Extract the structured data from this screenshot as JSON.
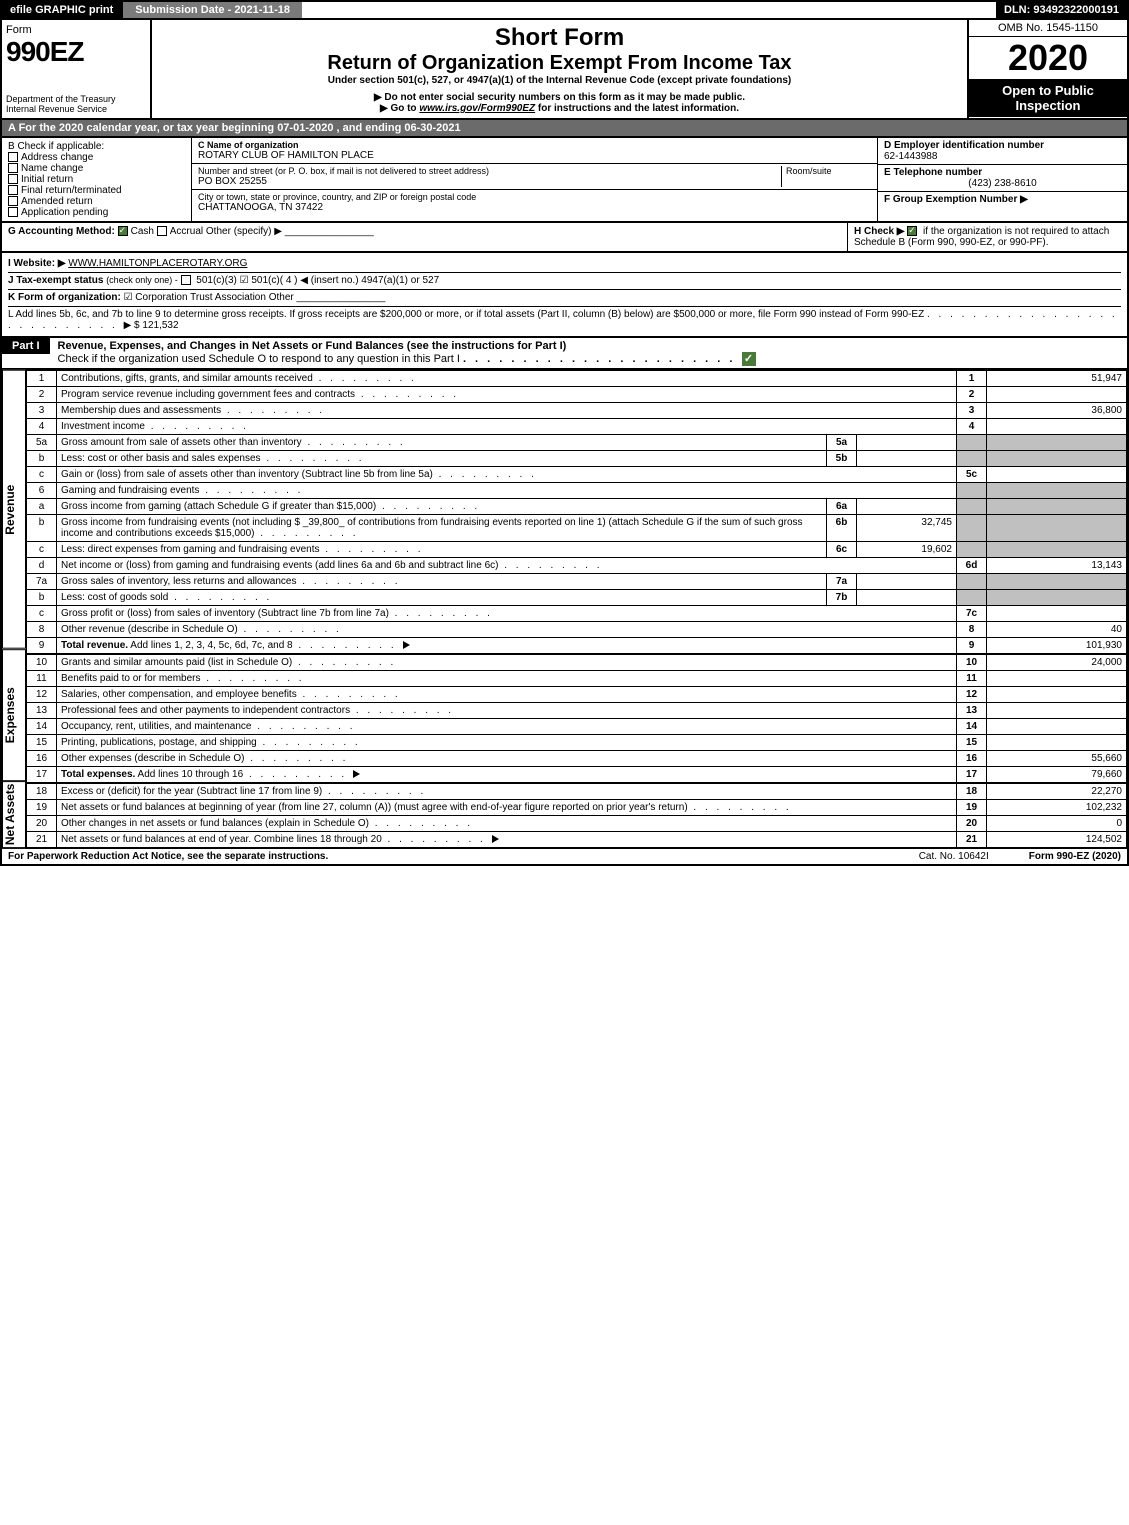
{
  "topbar": {
    "efile": "efile GRAPHIC print",
    "submission": "Submission Date - 2021-11-18",
    "dln": "DLN: 93492322000191"
  },
  "header": {
    "form_label": "Form",
    "form_number": "990EZ",
    "dept": "Department of the Treasury",
    "irs": "Internal Revenue Service",
    "short_form": "Short Form",
    "title": "Return of Organization Exempt From Income Tax",
    "under": "Under section 501(c), 527, or 4947(a)(1) of the Internal Revenue Code (except private foundations)",
    "notice1": "▶ Do not enter social security numbers on this form as it may be made public.",
    "notice2_pre": "▶ Go to ",
    "notice2_link": "www.irs.gov/Form990EZ",
    "notice2_post": " for instructions and the latest information.",
    "omb": "OMB No. 1545-1150",
    "year": "2020",
    "open": "Open to Public Inspection"
  },
  "row_a": "A For the 2020 calendar year, or tax year beginning 07-01-2020 , and ending 06-30-2021",
  "section_b": {
    "b_label": "B Check if applicable:",
    "opts": [
      "Address change",
      "Name change",
      "Initial return",
      "Final return/terminated",
      "Amended return",
      "Application pending"
    ],
    "c_label": "C Name of organization",
    "c_name": "ROTARY CLUB OF HAMILTON PLACE",
    "addr_label": "Number and street (or P. O. box, if mail is not delivered to street address)",
    "room": "Room/suite",
    "addr": "PO BOX 25255",
    "city_label": "City or town, state or province, country, and ZIP or foreign postal code",
    "city": "CHATTANOOGA, TN  37422",
    "d_label": "D Employer identification number",
    "d_val": "62-1443988",
    "e_label": "E Telephone number",
    "e_val": "(423) 238-8610",
    "f_label": "F Group Exemption Number ▶"
  },
  "gh": {
    "g_label": "G Accounting Method:",
    "g_cash": "Cash",
    "g_accrual": "Accrual",
    "g_other": "Other (specify) ▶",
    "h_label": "H Check ▶",
    "h_text": " if the organization is not required to attach Schedule B (Form 990, 990-EZ, or 990-PF).",
    "i_label": "I Website: ▶",
    "i_val": "WWW.HAMILTONPLACEROTARY.ORG",
    "j_label": "J Tax-exempt status",
    "j_sub": "(check only one) -",
    "j_opts": "501(c)(3)   ☑ 501(c)( 4 ) ◀ (insert no.)   4947(a)(1) or   527",
    "k_label": "K Form of organization:",
    "k_opts": "☑ Corporation   Trust   Association   Other",
    "l_text": "L Add lines 5b, 6c, and 7b to line 9 to determine gross receipts. If gross receipts are $200,000 or more, or if total assets (Part II, column (B) below) are $500,000 or more, file Form 990 instead of Form 990-EZ",
    "l_val": "▶ $ 121,532"
  },
  "part1": {
    "header": "Part I",
    "title": "Revenue, Expenses, and Changes in Net Assets or Fund Balances (see the instructions for Part I)",
    "check_line": "Check if the organization used Schedule O to respond to any question in this Part I"
  },
  "revenue": {
    "side": "Revenue",
    "lines": [
      {
        "n": "1",
        "d": "Contributions, gifts, grants, and similar amounts received",
        "rn": "1",
        "v": "51,947"
      },
      {
        "n": "2",
        "d": "Program service revenue including government fees and contracts",
        "rn": "2",
        "v": ""
      },
      {
        "n": "3",
        "d": "Membership dues and assessments",
        "rn": "3",
        "v": "36,800"
      },
      {
        "n": "4",
        "d": "Investment income",
        "rn": "4",
        "v": ""
      },
      {
        "n": "5a",
        "d": "Gross amount from sale of assets other than inventory",
        "mn": "5a",
        "mv": "",
        "shaded": true
      },
      {
        "n": "b",
        "d": "Less: cost or other basis and sales expenses",
        "mn": "5b",
        "mv": "",
        "shaded": true
      },
      {
        "n": "c",
        "d": "Gain or (loss) from sale of assets other than inventory (Subtract line 5b from line 5a)",
        "rn": "5c",
        "v": ""
      },
      {
        "n": "6",
        "d": "Gaming and fundraising events",
        "shaded": true
      },
      {
        "n": "a",
        "d": "Gross income from gaming (attach Schedule G if greater than $15,000)",
        "mn": "6a",
        "mv": "",
        "shaded": true
      },
      {
        "n": "b",
        "d": "Gross income from fundraising events (not including $ _39,800_ of contributions from fundraising events reported on line 1) (attach Schedule G if the sum of such gross income and contributions exceeds $15,000)",
        "mn": "6b",
        "mv": "32,745",
        "shaded": true
      },
      {
        "n": "c",
        "d": "Less: direct expenses from gaming and fundraising events",
        "mn": "6c",
        "mv": "19,602",
        "shaded": true
      },
      {
        "n": "d",
        "d": "Net income or (loss) from gaming and fundraising events (add lines 6a and 6b and subtract line 6c)",
        "rn": "6d",
        "v": "13,143"
      },
      {
        "n": "7a",
        "d": "Gross sales of inventory, less returns and allowances",
        "mn": "7a",
        "mv": "",
        "shaded": true
      },
      {
        "n": "b",
        "d": "Less: cost of goods sold",
        "mn": "7b",
        "mv": "",
        "shaded": true
      },
      {
        "n": "c",
        "d": "Gross profit or (loss) from sales of inventory (Subtract line 7b from line 7a)",
        "rn": "7c",
        "v": ""
      },
      {
        "n": "8",
        "d": "Other revenue (describe in Schedule O)",
        "rn": "8",
        "v": "40"
      },
      {
        "n": "9",
        "d": "Total revenue. Add lines 1, 2, 3, 4, 5c, 6d, 7c, and 8",
        "rn": "9",
        "v": "101,930",
        "bold": true,
        "arrow": true
      }
    ]
  },
  "expenses": {
    "side": "Expenses",
    "lines": [
      {
        "n": "10",
        "d": "Grants and similar amounts paid (list in Schedule O)",
        "rn": "10",
        "v": "24,000"
      },
      {
        "n": "11",
        "d": "Benefits paid to or for members",
        "rn": "11",
        "v": ""
      },
      {
        "n": "12",
        "d": "Salaries, other compensation, and employee benefits",
        "rn": "12",
        "v": ""
      },
      {
        "n": "13",
        "d": "Professional fees and other payments to independent contractors",
        "rn": "13",
        "v": ""
      },
      {
        "n": "14",
        "d": "Occupancy, rent, utilities, and maintenance",
        "rn": "14",
        "v": ""
      },
      {
        "n": "15",
        "d": "Printing, publications, postage, and shipping",
        "rn": "15",
        "v": ""
      },
      {
        "n": "16",
        "d": "Other expenses (describe in Schedule O)",
        "rn": "16",
        "v": "55,660"
      },
      {
        "n": "17",
        "d": "Total expenses. Add lines 10 through 16",
        "rn": "17",
        "v": "79,660",
        "bold": true,
        "arrow": true
      }
    ]
  },
  "netassets": {
    "side": "Net Assets",
    "lines": [
      {
        "n": "18",
        "d": "Excess or (deficit) for the year (Subtract line 17 from line 9)",
        "rn": "18",
        "v": "22,270"
      },
      {
        "n": "19",
        "d": "Net assets or fund balances at beginning of year (from line 27, column (A)) (must agree with end-of-year figure reported on prior year's return)",
        "rn": "19",
        "v": "102,232"
      },
      {
        "n": "20",
        "d": "Other changes in net assets or fund balances (explain in Schedule O)",
        "rn": "20",
        "v": "0"
      },
      {
        "n": "21",
        "d": "Net assets or fund balances at end of year. Combine lines 18 through 20",
        "rn": "21",
        "v": "124,502",
        "arrow": true
      }
    ]
  },
  "footer": {
    "left": "For Paperwork Reduction Act Notice, see the separate instructions.",
    "center": "Cat. No. 10642I",
    "right": "Form 990-EZ (2020)"
  }
}
